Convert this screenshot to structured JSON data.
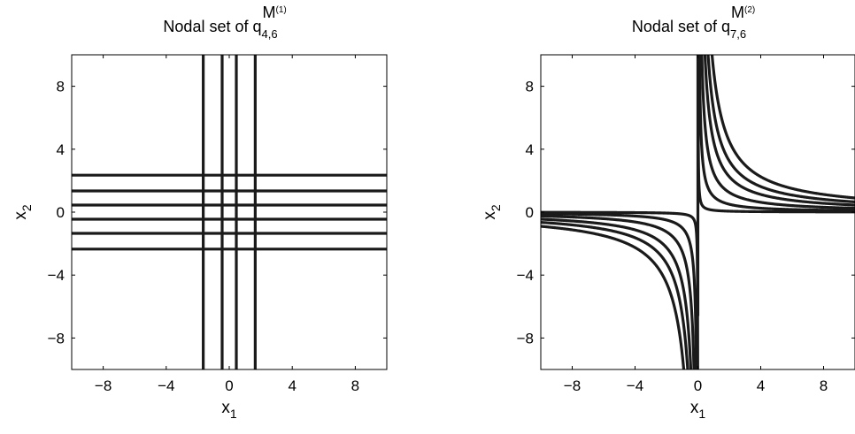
{
  "chart_data": [
    {
      "type": "line",
      "title": {
        "prefix": "Nodal set of q",
        "superscript": "M",
        "superscript2": "(1)",
        "subscript": "4,6"
      },
      "xlabel": {
        "base": "x",
        "sub": "1"
      },
      "ylabel": {
        "base": "x",
        "sub": "2"
      },
      "xlim": [
        -10,
        10
      ],
      "ylim": [
        -10,
        10
      ],
      "xticks": [
        -8,
        -4,
        0,
        4,
        8
      ],
      "yticks": [
        -8,
        -4,
        0,
        4,
        8
      ],
      "xtick_labels": [
        "−8",
        "−4",
        "0",
        "4",
        "8"
      ],
      "ytick_labels": [
        "−8",
        "−4",
        "0",
        "4",
        "8"
      ],
      "grid": false,
      "series": [
        {
          "orientation": "vertical",
          "x_values": [
            -1.65,
            -0.45,
            0.45,
            1.65
          ]
        },
        {
          "orientation": "horizontal",
          "y_values": [
            2.35,
            1.35,
            0.45,
            -0.45,
            -1.35,
            -2.35
          ]
        }
      ]
    },
    {
      "type": "line",
      "title": {
        "prefix": "Nodal set of q",
        "superscript": "M",
        "superscript2": "(2)",
        "subscript": "7,6"
      },
      "xlabel": {
        "base": "x",
        "sub": "1"
      },
      "ylabel": {
        "base": "x",
        "sub": "2"
      },
      "xlim": [
        -10,
        10
      ],
      "ylim": [
        -10,
        10
      ],
      "xticks": [
        -8,
        -4,
        0,
        4,
        8
      ],
      "yticks": [
        -8,
        -4,
        0,
        4,
        8
      ],
      "xtick_labels": [
        "−8",
        "−4",
        "0",
        "4",
        "8"
      ],
      "ytick_labels": [
        "−8",
        "−4",
        "0",
        "4",
        "8"
      ],
      "grid": false,
      "series": [
        {
          "curve": "x1*x2=c",
          "c_values": [
            0.12,
            1.0,
            2.5,
            4.5,
            6.5,
            9.0
          ]
        },
        {
          "curve": "x1=0 segment",
          "y_range": [
            -6.6,
            10
          ]
        }
      ]
    }
  ]
}
